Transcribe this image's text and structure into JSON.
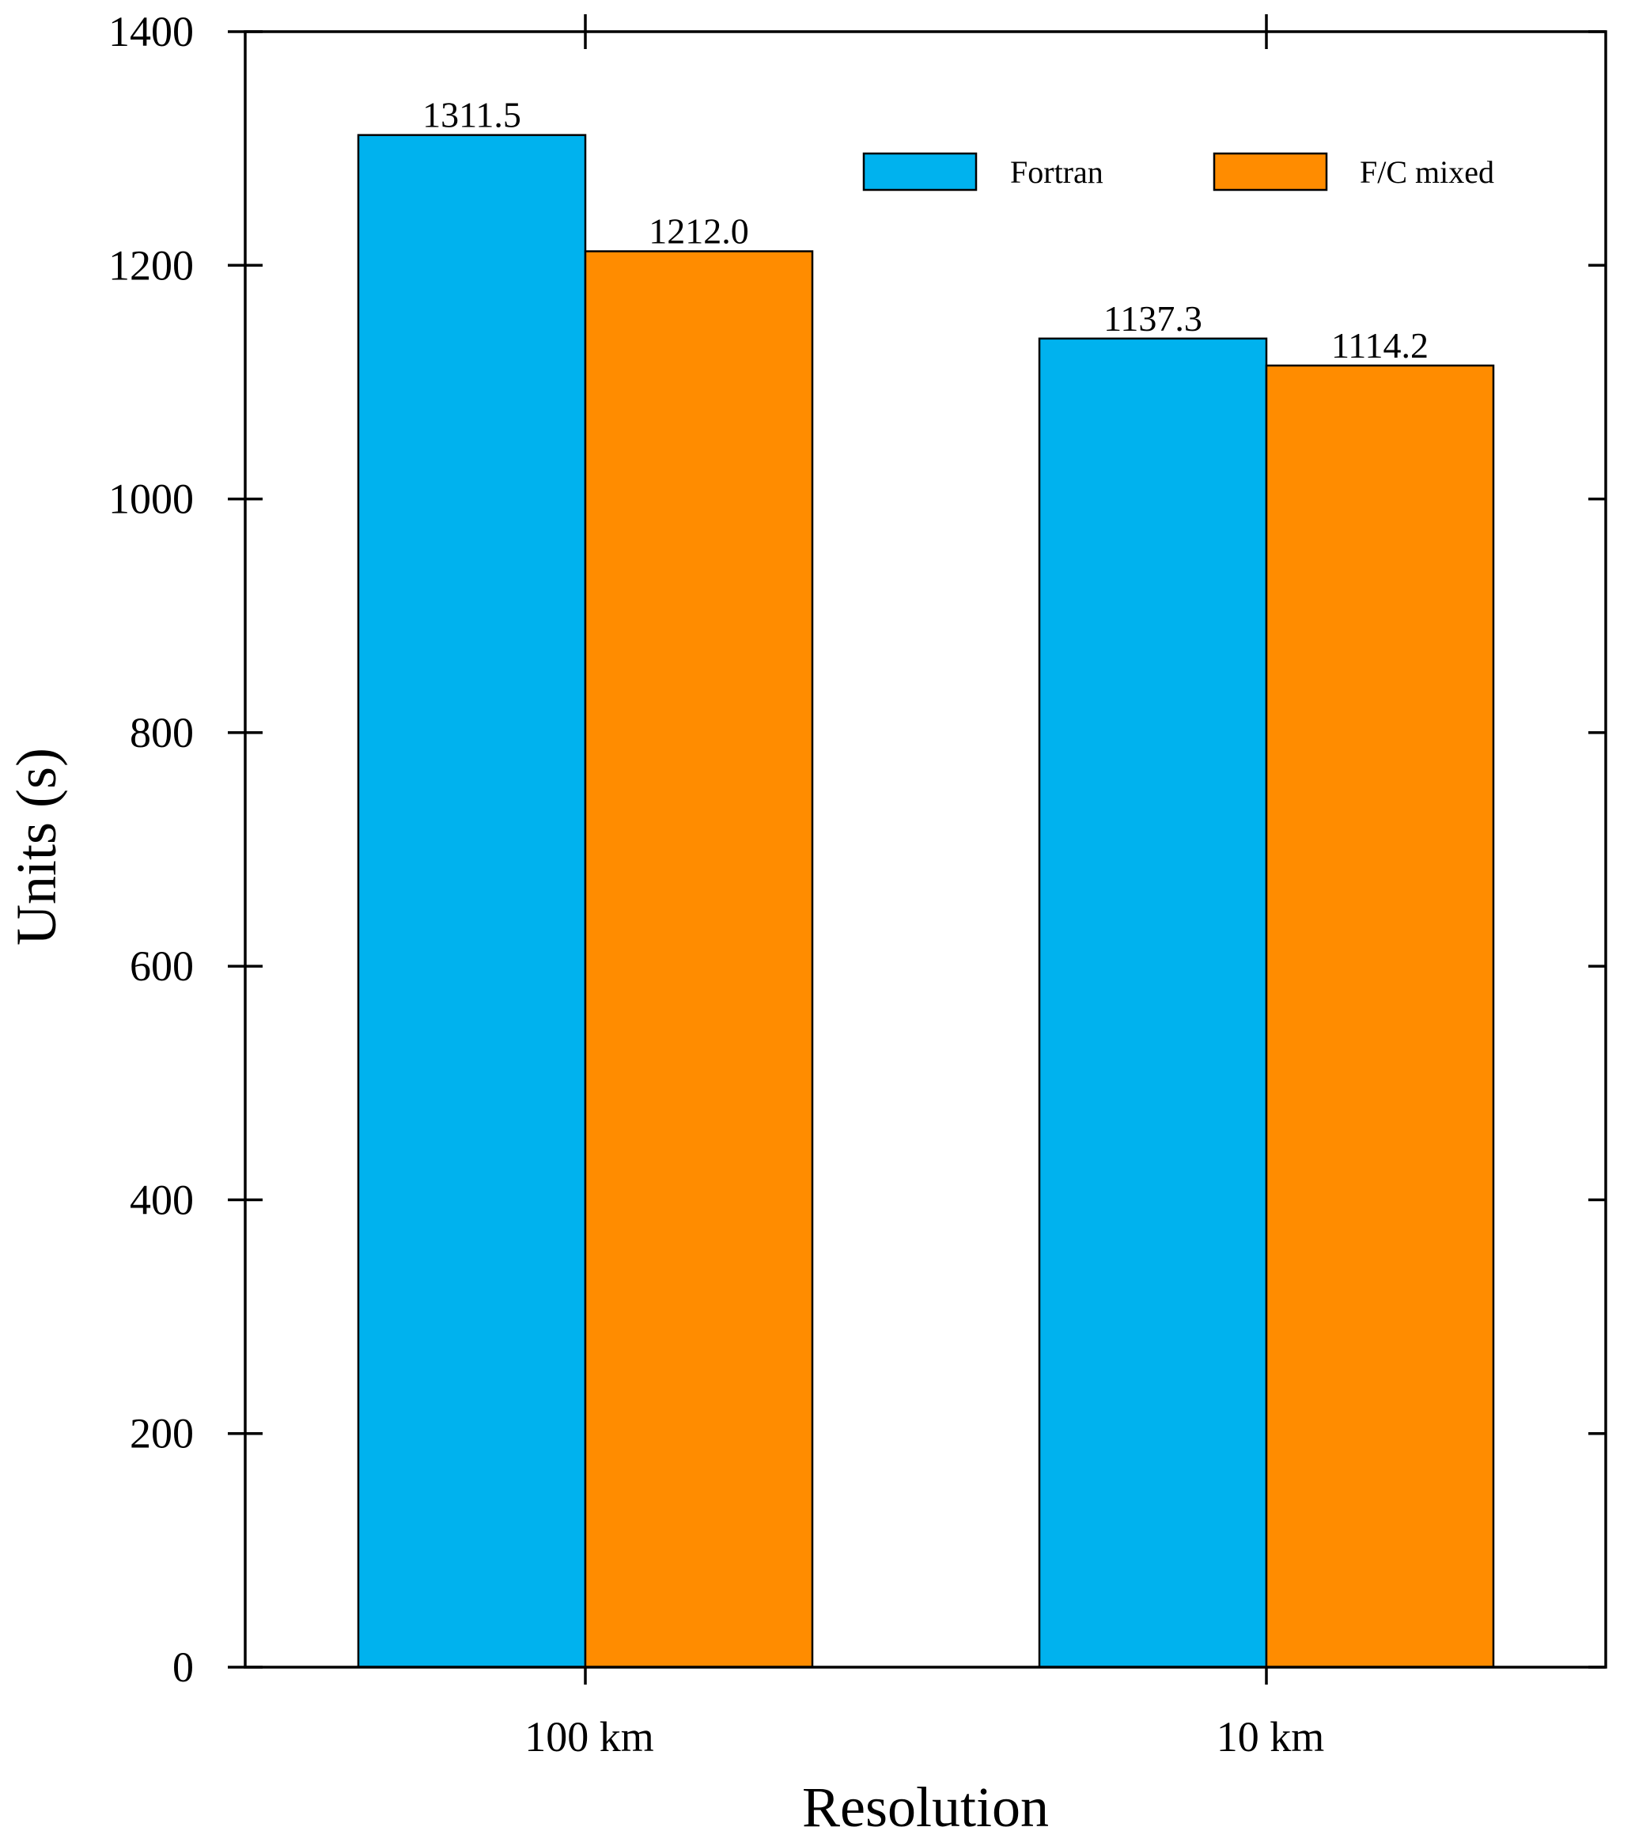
{
  "chart_data": {
    "type": "bar",
    "categories": [
      "100 km",
      "10 km"
    ],
    "series": [
      {
        "name": "Fortran",
        "values": [
          1311.5,
          1137.3
        ],
        "color": "#00B2EE"
      },
      {
        "name": "F/C mixed",
        "values": [
          1212.0,
          1114.2
        ],
        "color": "#FF8C00"
      }
    ],
    "data_labels": [
      [
        "1311.5",
        "1137.3"
      ],
      [
        "1212.0",
        "1114.2"
      ]
    ],
    "xlabel": "Resolution",
    "ylabel": "Units (s)",
    "ylim": [
      0,
      1400
    ],
    "yticks": [
      0,
      200,
      400,
      600,
      800,
      1000,
      1200,
      1400
    ],
    "legend_position": "top-right",
    "grid": false
  }
}
